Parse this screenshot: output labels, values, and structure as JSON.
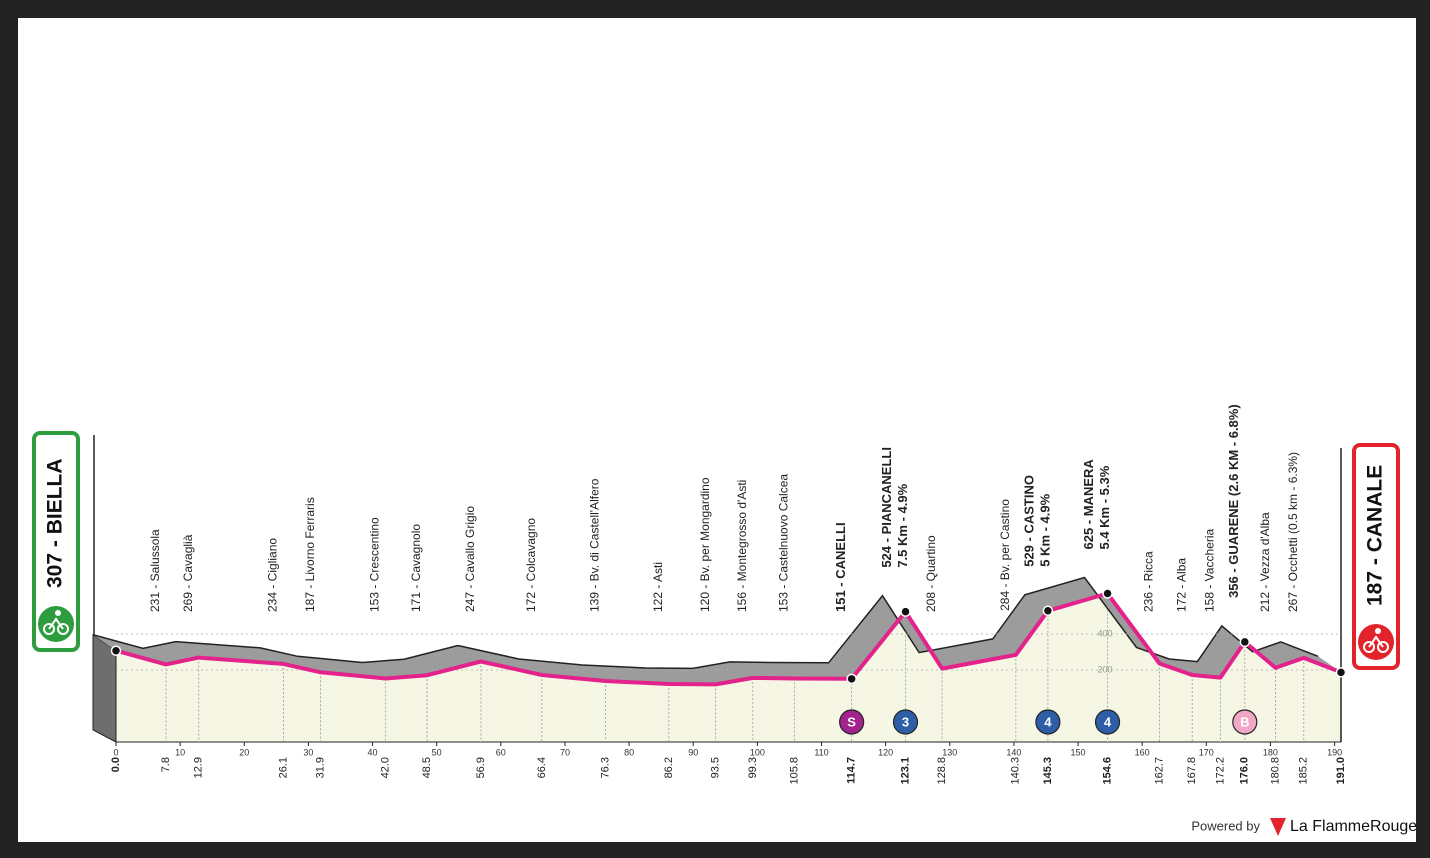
{
  "chart_data": {
    "type": "line",
    "x": [
      0,
      7.8,
      12.9,
      26.1,
      31.9,
      42.0,
      48.5,
      56.9,
      66.4,
      76.3,
      86.2,
      93.5,
      99.3,
      105.8,
      114.7,
      123.1,
      128.8,
      140.3,
      145.3,
      154.6,
      162.7,
      167.8,
      172.2,
      176.0,
      180.8,
      185.2,
      191.0
    ],
    "x_labels": [
      "0.0",
      "7.8",
      "12.9",
      "26.1",
      "31.9",
      "42.0",
      "48.5",
      "56.9",
      "66.4",
      "76.3",
      "86.2",
      "93.5",
      "99.3",
      "105.8",
      "114.7",
      "123.1",
      "128.8",
      "140.3",
      "145.3",
      "154.6",
      "162.7",
      "167.8",
      "172.2",
      "176.0",
      "180.8",
      "185.2",
      "191.0"
    ],
    "values": [
      307,
      231,
      269,
      234,
      187,
      153,
      171,
      247,
      172,
      139,
      122,
      120,
      156,
      153,
      151,
      524,
      208,
      284,
      529,
      625,
      236,
      172,
      158,
      356,
      212,
      267,
      187
    ],
    "point_labels": [
      "307 - BIELLA",
      "231 - Salussola",
      "269 - Cavaglià",
      "234 - Cigliano",
      "187 - Livorno Ferraris",
      "153 - Crescentino",
      "171 - Cavagnolo",
      "247 - Cavallo Grigio",
      "172 - Colcavagno",
      "139 - Bv. di Castell'Alfero",
      "122 - Asti",
      "120 - Bv. per Mongardino",
      "156 - Montegrosso d'Asti",
      "153 - Castelnuovo Calcea",
      "151 - CANELLI",
      "524 - PIANCANELLI",
      "208 - Quartino",
      "284 - Bv. per Castino",
      "529 - CASTINO",
      "625 - MANERA",
      "236 - Ricca",
      "172 - Alba",
      "158 - Vaccheria",
      "356 - GUARENE (2.6 KM - 6.8%)",
      "212 - Vezza d'Alba",
      "267 - Occhetti (0.5 km - 6.3%)",
      "187 - CANALE"
    ],
    "sublabels": [
      null,
      null,
      null,
      null,
      null,
      null,
      null,
      null,
      null,
      null,
      null,
      null,
      null,
      null,
      null,
      "7.5 Km - 4.9%",
      null,
      null,
      "5 Km - 4.9%",
      "5.4 Km - 5.3%",
      null,
      null,
      null,
      null,
      null,
      null,
      null
    ],
    "badges": [
      null,
      null,
      null,
      null,
      null,
      null,
      null,
      null,
      null,
      null,
      null,
      null,
      null,
      null,
      {
        "label": "S",
        "color": "#a3238e"
      },
      {
        "label": "3",
        "color": "#2f5ea8"
      },
      null,
      null,
      {
        "label": "4",
        "color": "#2f5ea8"
      },
      {
        "label": "4",
        "color": "#2f5ea8"
      },
      null,
      null,
      null,
      {
        "label": "B",
        "color": "#f2a7c6"
      },
      null,
      null,
      null
    ],
    "xlim": [
      0,
      191
    ],
    "xticks": [
      0,
      10,
      20,
      30,
      40,
      50,
      60,
      70,
      80,
      90,
      100,
      110,
      120,
      130,
      140,
      150,
      160,
      170,
      180,
      190
    ],
    "ylim": [
      -200,
      3800
    ],
    "yticks": [
      200,
      400
    ],
    "line_color": "#e3228c",
    "start_color": "#2e9d3f",
    "finish_color": "#e3232c"
  },
  "footer": {
    "powered": "Powered by",
    "brand": "La FlammeRouge"
  }
}
